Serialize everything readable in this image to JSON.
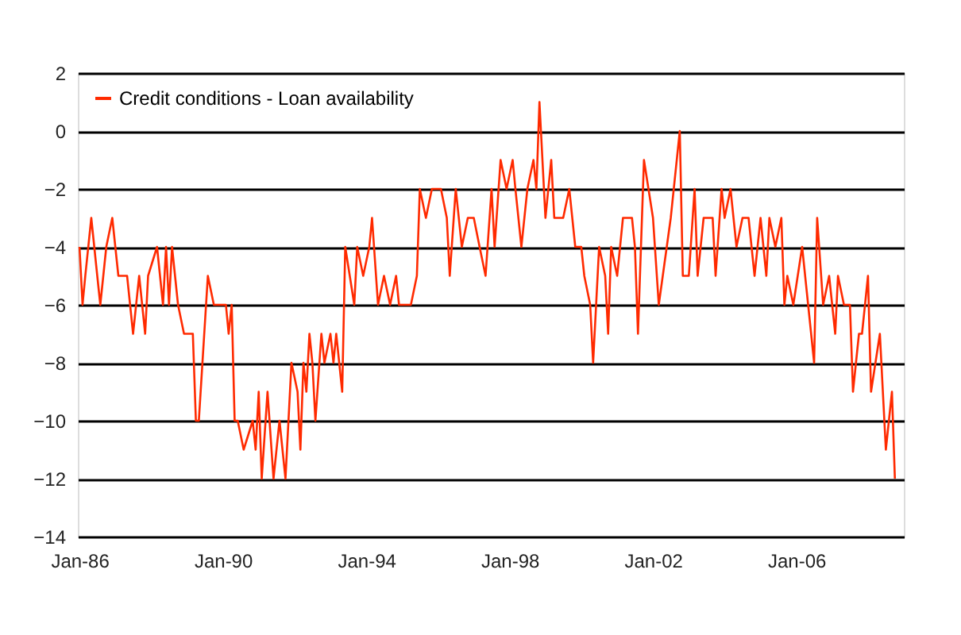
{
  "chart_data": {
    "type": "line",
    "legend": "top left",
    "grid": "y",
    "line_style": "solid",
    "marker": "none",
    "xlim": [
      "1985-12-15",
      "2008-12-31"
    ],
    "xticks": [
      {
        "value": "1986-01",
        "label": "Jan-86"
      },
      {
        "value": "1990-01",
        "label": "Jan-90"
      },
      {
        "value": "1994-01",
        "label": "Jan-94"
      },
      {
        "value": "1998-01",
        "label": "Jan-98"
      },
      {
        "value": "2002-01",
        "label": "Jan-02"
      },
      {
        "value": "2006-01",
        "label": "Jan-06"
      }
    ],
    "ylim": [
      -14,
      2
    ],
    "yticks": [
      -14,
      -12,
      -10,
      -8,
      -6,
      -4,
      -2,
      0,
      2
    ],
    "series": [
      {
        "name": "Credit conditions - Loan availability",
        "color": "#ff2a00",
        "x": [
          "1986-01",
          "1986-02",
          "1986-03",
          "1986-05",
          "1986-07",
          "1986-08",
          "1986-10",
          "1986-12",
          "1987-02",
          "1987-05",
          "1987-07",
          "1987-09",
          "1987-11",
          "1987-12",
          "1988-03",
          "1988-05",
          "1988-06",
          "1988-07",
          "1988-08",
          "1988-10",
          "1988-12",
          "1989-03",
          "1989-04",
          "1989-05",
          "1989-08",
          "1989-10",
          "1990-02",
          "1990-03",
          "1990-04",
          "1990-05",
          "1990-06",
          "1990-08",
          "1990-11",
          "1990-12",
          "1991-01",
          "1991-02",
          "1991-04",
          "1991-06",
          "1991-08",
          "1991-10",
          "1991-12",
          "1992-02",
          "1992-03",
          "1992-04",
          "1992-05",
          "1992-06",
          "1992-07",
          "1992-08",
          "1992-10",
          "1992-11",
          "1993-01",
          "1993-02",
          "1993-03",
          "1993-05",
          "1993-06",
          "1993-09",
          "1993-10",
          "1993-12",
          "1994-02",
          "1994-03",
          "1994-05",
          "1994-07",
          "1994-09",
          "1994-11",
          "1994-12",
          "1995-04",
          "1995-06",
          "1995-07",
          "1995-09",
          "1995-11",
          "1996-02",
          "1996-04",
          "1996-05",
          "1996-07",
          "1996-09",
          "1996-11",
          "1997-01",
          "1997-03",
          "1997-05",
          "1997-07",
          "1997-08",
          "1997-10",
          "1997-12",
          "1998-02",
          "1998-03",
          "1998-05",
          "1998-07",
          "1998-09",
          "1998-10",
          "1998-11",
          "1999-01",
          "1999-03",
          "1999-04",
          "1999-07",
          "1999-09",
          "1999-11",
          "2000-01",
          "2000-02",
          "2000-04",
          "2000-05",
          "2000-07",
          "2000-09",
          "2000-10",
          "2000-11",
          "2001-01",
          "2001-03",
          "2001-05",
          "2001-06",
          "2001-07",
          "2001-08",
          "2001-10",
          "2002-01",
          "2002-03",
          "2002-07",
          "2002-10",
          "2002-11",
          "2003-01",
          "2003-03",
          "2003-04",
          "2003-06",
          "2003-09",
          "2003-10",
          "2003-12",
          "2004-01",
          "2004-03",
          "2004-05",
          "2004-07",
          "2004-09",
          "2004-11",
          "2005-01",
          "2005-03",
          "2005-04",
          "2005-06",
          "2005-08",
          "2005-09",
          "2005-10",
          "2005-12",
          "2006-03",
          "2006-05",
          "2006-07",
          "2006-08",
          "2006-10",
          "2006-12",
          "2007-02",
          "2007-03",
          "2007-05",
          "2007-07",
          "2007-08",
          "2007-10",
          "2007-11",
          "2008-01",
          "2008-02",
          "2008-05",
          "2008-07",
          "2008-09",
          "2008-10"
        ],
        "values": [
          -4,
          -6,
          -5,
          -3,
          -5,
          -6,
          -4,
          -3,
          -5,
          -5,
          -7,
          -5,
          -7,
          -5,
          -4,
          -6,
          -4,
          -6,
          -4,
          -6,
          -7,
          -7,
          -10,
          -10,
          -5,
          -6,
          -6,
          -7,
          -6,
          -10,
          -10,
          -11,
          -10,
          -11,
          -9,
          -12,
          -9,
          -12,
          -10,
          -12,
          -8,
          -9,
          -11,
          -8,
          -9,
          -7,
          -8,
          -10,
          -7,
          -8,
          -7,
          -8,
          -7,
          -9,
          -4,
          -6,
          -4,
          -5,
          -4,
          -3,
          -6,
          -5,
          -6,
          -5,
          -6,
          -6,
          -5,
          -2,
          -3,
          -2,
          -2,
          -3,
          -5,
          -2,
          -4,
          -3,
          -3,
          -4,
          -5,
          -2,
          -4,
          -1,
          -2,
          -1,
          -2,
          -4,
          -2,
          -1,
          -2,
          1,
          -3,
          -1,
          -3,
          -3,
          -2,
          -4,
          -4,
          -5,
          -6,
          -8,
          -4,
          -5,
          -7,
          -4,
          -5,
          -3,
          -3,
          -3,
          -4,
          -7,
          -1,
          -3,
          -6,
          -3,
          0,
          -5,
          -5,
          -2,
          -5,
          -3,
          -3,
          -5,
          -2,
          -3,
          -2,
          -4,
          -3,
          -3,
          -5,
          -3,
          -5,
          -3,
          -4,
          -3,
          -6,
          -5,
          -6,
          -4,
          -6,
          -8,
          -3,
          -6,
          -5,
          -7,
          -5,
          -6,
          -6,
          -9,
          -7,
          -7,
          -5,
          -9,
          -7,
          -11,
          -9,
          -12
        ]
      }
    ]
  }
}
